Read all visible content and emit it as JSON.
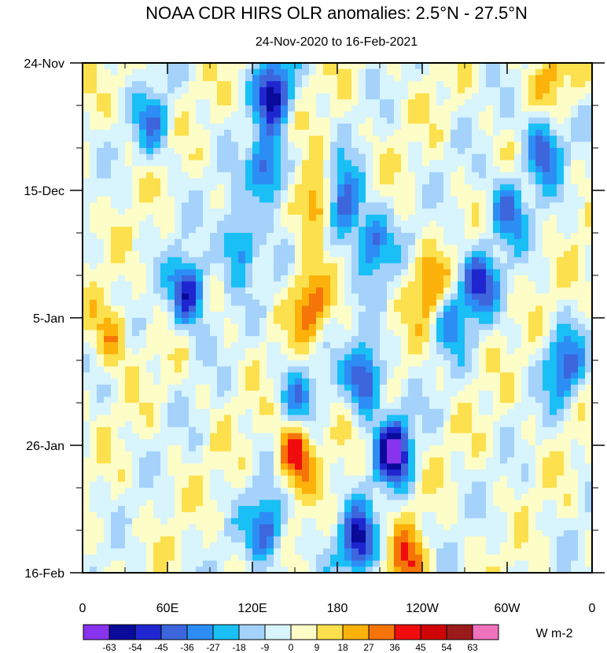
{
  "chart_data": {
    "type": "heatmap",
    "title": "NOAA CDR HIRS OLR anomalies: 2.5°N - 27.5°N",
    "subtitle": "24-Nov-2020 to 16-Feb-2021",
    "x_ticks": [
      "0",
      "60E",
      "120E",
      "180",
      "120W",
      "60W",
      "0"
    ],
    "x_range": [
      0,
      360
    ],
    "y_ticks": [
      "24-Nov",
      "15-Dec",
      "5-Jan",
      "26-Jan",
      "16-Feb"
    ],
    "y_range_days": [
      0,
      84
    ],
    "colorbar": {
      "labels": [
        "-63",
        "-54",
        "-45",
        "-36",
        "-27",
        "-18",
        "-9",
        "0",
        "9",
        "18",
        "27",
        "36",
        "45",
        "54",
        "63"
      ],
      "colors": [
        "#8833ee",
        "#0a0a9a",
        "#1f26d0",
        "#3d66dd",
        "#2c8ef5",
        "#19bff5",
        "#a4d2fa",
        "#d8f4fc",
        "#fdfdc8",
        "#fce04d",
        "#fcb20a",
        "#f57508",
        "#f00c0c",
        "#cf0505",
        "#9c1a1a",
        "#f072bc"
      ],
      "units": "W m-2"
    },
    "anomaly_features": [
      {
        "lon": 110,
        "day": 30,
        "sign": "negative",
        "strength": 40
      },
      {
        "lon": 50,
        "day": 10,
        "sign": "negative",
        "strength": 30
      },
      {
        "lon": 75,
        "day": 38,
        "sign": "negative",
        "strength": 55
      },
      {
        "lon": 130,
        "day": 18,
        "sign": "negative",
        "strength": 50
      },
      {
        "lon": 135,
        "day": 5,
        "sign": "negative",
        "strength": 55
      },
      {
        "lon": 185,
        "day": 23,
        "sign": "negative",
        "strength": 50
      },
      {
        "lon": 205,
        "day": 30,
        "sign": "negative",
        "strength": 40
      },
      {
        "lon": 200,
        "day": 52,
        "sign": "negative",
        "strength": 50
      },
      {
        "lon": 220,
        "day": 64,
        "sign": "negative",
        "strength": 63
      },
      {
        "lon": 195,
        "day": 79,
        "sign": "negative",
        "strength": 55
      },
      {
        "lon": 130,
        "day": 77,
        "sign": "negative",
        "strength": 45
      },
      {
        "lon": 280,
        "day": 36,
        "sign": "negative",
        "strength": 45
      },
      {
        "lon": 300,
        "day": 24,
        "sign": "negative",
        "strength": 40
      },
      {
        "lon": 325,
        "day": 14,
        "sign": "negative",
        "strength": 45
      },
      {
        "lon": 340,
        "day": 50,
        "sign": "negative",
        "strength": 40
      },
      {
        "lon": 150,
        "day": 55,
        "sign": "negative",
        "strength": 30
      },
      {
        "lon": 260,
        "day": 42,
        "sign": "negative",
        "strength": 30
      },
      {
        "lon": 165,
        "day": 23,
        "sign": "positive",
        "strength": 40
      },
      {
        "lon": 150,
        "day": 64,
        "sign": "positive",
        "strength": 45
      },
      {
        "lon": 160,
        "day": 40,
        "sign": "positive",
        "strength": 30
      },
      {
        "lon": 245,
        "day": 37,
        "sign": "positive",
        "strength": 30
      },
      {
        "lon": 230,
        "day": 83,
        "sign": "positive",
        "strength": 35
      },
      {
        "lon": 20,
        "day": 45,
        "sign": "positive",
        "strength": 27
      },
      {
        "lon": 330,
        "day": 2,
        "sign": "positive",
        "strength": 20
      }
    ]
  }
}
